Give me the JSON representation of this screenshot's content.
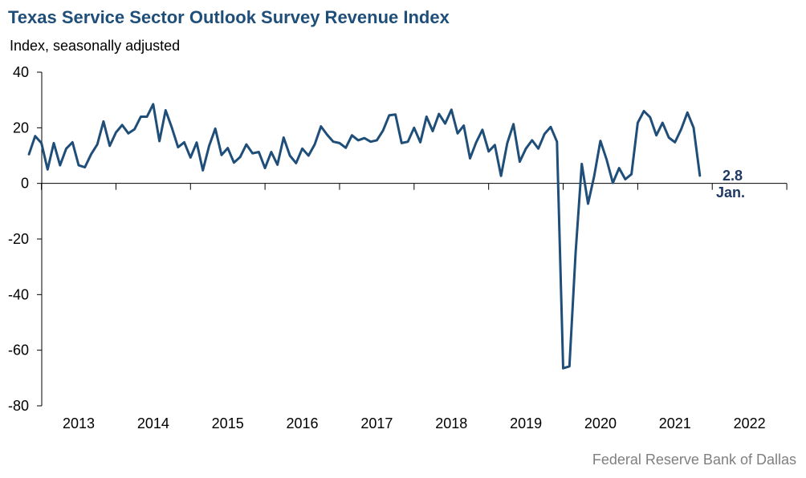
{
  "chart_data": {
    "type": "line",
    "title": "Texas Service Sector Outlook Survey Revenue Index",
    "ylabel": "Index, seasonally adjusted",
    "source": "Federal Reserve Bank of Dallas",
    "ylim": [
      -80,
      40
    ],
    "yticks": [
      "40",
      "20",
      "0",
      "-20",
      "-40",
      "-60",
      "-80"
    ],
    "xticks": [
      "2013",
      "2014",
      "2015",
      "2016",
      "2017",
      "2018",
      "2019",
      "2020",
      "2021",
      "2022"
    ],
    "line_color": "#1f4e79",
    "start": "2012-05",
    "end": "2022-01",
    "series": [
      {
        "values": [
          10.5,
          17,
          14.5,
          5,
          14.5,
          6.5,
          12.5,
          14.8,
          6.5,
          5.8,
          10.5,
          14,
          22.3,
          13.5,
          18.3,
          21,
          18,
          19.5,
          24,
          24,
          28.5,
          15.2,
          26.3,
          20,
          13,
          14.8,
          9.3,
          14.7,
          4.7,
          13.5,
          19.7,
          10.2,
          12.7,
          7.5,
          9.5,
          14,
          10.8,
          11.3,
          5.5,
          11.3,
          6.7,
          16.5,
          10,
          7.3,
          12.5,
          10,
          14,
          20.5,
          17.5,
          15,
          14.5,
          12.8,
          17.3,
          15.5,
          16.3,
          15,
          15.5,
          19,
          24.5,
          24.8,
          14.5,
          15,
          20,
          14.8,
          24,
          18.8,
          25,
          21.5,
          26.5,
          18,
          20.8,
          9,
          14.8,
          19.3,
          11.5,
          13.8,
          2.7,
          14.5,
          21.3,
          7.8,
          12.5,
          15.5,
          12.5,
          17.8,
          20.3,
          15,
          -66.5,
          -65.8,
          -25,
          7,
          -7.3,
          2.7,
          15.3,
          8.5,
          0.2,
          5.5,
          1.5,
          3.3,
          21.8,
          26,
          23.8,
          17.3,
          21.8,
          16.5,
          14.8,
          19.5,
          25.5,
          20,
          2.8
        ]
      }
    ],
    "annotation": {
      "value": "2.8",
      "label": "Jan."
    }
  }
}
